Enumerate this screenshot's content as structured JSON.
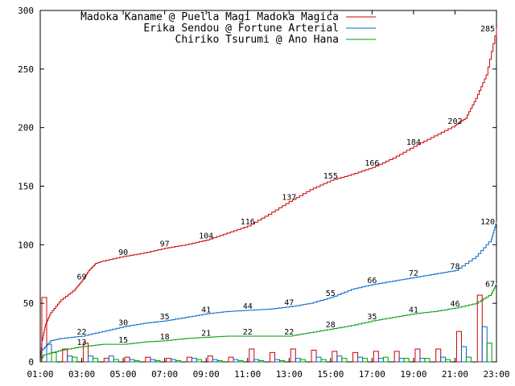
{
  "chart_data": {
    "type": "line",
    "ylim": [
      0,
      300
    ],
    "yticks": [
      "0",
      "50",
      "100",
      "150",
      "200",
      "250",
      "300"
    ],
    "xlim": [
      "01:00",
      "23:00"
    ],
    "xticks": [
      "01:00",
      "03:00",
      "05:00",
      "07:00",
      "09:00",
      "11:00",
      "13:00",
      "15:00",
      "17:00",
      "19:00",
      "21:00",
      "23:00"
    ],
    "legend_position": "top-right",
    "series": [
      {
        "name": "Madoka Kaname @ Puella Magi Madoka Magica",
        "color": "#cc0000",
        "points": [
          [
            "01:00",
            0
          ],
          [
            "01:05",
            18
          ],
          [
            "01:15",
            32
          ],
          [
            "01:30",
            42
          ],
          [
            "02:00",
            53
          ],
          [
            "02:40",
            62
          ],
          [
            "03:00",
            69
          ],
          [
            "03:20",
            78
          ],
          [
            "03:40",
            84
          ],
          [
            "04:00",
            86
          ],
          [
            "05:00",
            90
          ],
          [
            "06:00",
            93
          ],
          [
            "07:00",
            97
          ],
          [
            "08:00",
            100
          ],
          [
            "09:00",
            104
          ],
          [
            "10:00",
            110
          ],
          [
            "11:00",
            116
          ],
          [
            "12:00",
            126
          ],
          [
            "13:00",
            137
          ],
          [
            "14:00",
            147
          ],
          [
            "15:00",
            155
          ],
          [
            "16:00",
            160
          ],
          [
            "17:00",
            166
          ],
          [
            "18:00",
            174
          ],
          [
            "19:00",
            184
          ],
          [
            "20:00",
            193
          ],
          [
            "21:00",
            202
          ],
          [
            "21:30",
            208
          ],
          [
            "22:00",
            225
          ],
          [
            "22:30",
            245
          ],
          [
            "23:00",
            285
          ]
        ],
        "labels": [
          [
            "03:00",
            69,
            "69"
          ],
          [
            "05:00",
            90,
            "90"
          ],
          [
            "07:00",
            97,
            "97"
          ],
          [
            "09:00",
            104,
            "104"
          ],
          [
            "11:00",
            116,
            "116"
          ],
          [
            "13:00",
            137,
            "137"
          ],
          [
            "15:00",
            155,
            "155"
          ],
          [
            "17:00",
            166,
            "166"
          ],
          [
            "19:00",
            184,
            "184"
          ],
          [
            "21:00",
            202,
            "202"
          ],
          [
            "23:00",
            285,
            "285"
          ]
        ],
        "bars": [
          [
            "01:00",
            55
          ],
          [
            "02:00",
            11
          ],
          [
            "03:00",
            16
          ],
          [
            "04:00",
            3
          ],
          [
            "05:00",
            4
          ],
          [
            "06:00",
            4
          ],
          [
            "07:00",
            3
          ],
          [
            "08:00",
            4
          ],
          [
            "09:00",
            5
          ],
          [
            "10:00",
            4
          ],
          [
            "11:00",
            11
          ],
          [
            "12:00",
            8
          ],
          [
            "13:00",
            11
          ],
          [
            "14:00",
            10
          ],
          [
            "15:00",
            9
          ],
          [
            "16:00",
            8
          ],
          [
            "17:00",
            9
          ],
          [
            "18:00",
            9
          ],
          [
            "19:00",
            11
          ],
          [
            "20:00",
            11
          ],
          [
            "21:00",
            26
          ],
          [
            "22:00",
            57
          ]
        ]
      },
      {
        "name": "Erika Sendou @ Fortune Arterial",
        "color": "#0066cc",
        "points": [
          [
            "01:00",
            0
          ],
          [
            "01:05",
            10
          ],
          [
            "01:30",
            18
          ],
          [
            "02:00",
            20
          ],
          [
            "03:00",
            22
          ],
          [
            "04:00",
            26
          ],
          [
            "05:00",
            30
          ],
          [
            "06:00",
            33
          ],
          [
            "07:00",
            35
          ],
          [
            "08:00",
            38
          ],
          [
            "09:00",
            41
          ],
          [
            "10:00",
            43
          ],
          [
            "11:00",
            44
          ],
          [
            "12:00",
            45
          ],
          [
            "13:00",
            47
          ],
          [
            "14:00",
            50
          ],
          [
            "15:00",
            55
          ],
          [
            "16:00",
            62
          ],
          [
            "17:00",
            66
          ],
          [
            "18:00",
            69
          ],
          [
            "19:00",
            72
          ],
          [
            "20:00",
            75
          ],
          [
            "21:00",
            78
          ],
          [
            "22:00",
            90
          ],
          [
            "22:45",
            105
          ],
          [
            "23:00",
            120
          ]
        ],
        "labels": [
          [
            "03:00",
            22,
            "22"
          ],
          [
            "05:00",
            30,
            "30"
          ],
          [
            "07:00",
            35,
            "35"
          ],
          [
            "09:00",
            41,
            "41"
          ],
          [
            "11:00",
            44,
            "44"
          ],
          [
            "13:00",
            47,
            "47"
          ],
          [
            "15:00",
            55,
            "55"
          ],
          [
            "17:00",
            66,
            "66"
          ],
          [
            "19:00",
            72,
            "72"
          ],
          [
            "21:00",
            78,
            "78"
          ],
          [
            "23:00",
            120,
            "120"
          ]
        ],
        "bars": [
          [
            "01:00",
            15
          ],
          [
            "02:00",
            5
          ],
          [
            "03:00",
            5
          ],
          [
            "04:00",
            5
          ],
          [
            "05:00",
            2
          ],
          [
            "06:00",
            2
          ],
          [
            "07:00",
            2
          ],
          [
            "08:00",
            3
          ],
          [
            "09:00",
            2
          ],
          [
            "10:00",
            2
          ],
          [
            "11:00",
            2
          ],
          [
            "12:00",
            2
          ],
          [
            "13:00",
            3
          ],
          [
            "14:00",
            4
          ],
          [
            "15:00",
            5
          ],
          [
            "16:00",
            4
          ],
          [
            "17:00",
            3
          ],
          [
            "18:00",
            3
          ],
          [
            "19:00",
            3
          ],
          [
            "20:00",
            4
          ],
          [
            "21:00",
            13
          ],
          [
            "22:00",
            30
          ]
        ]
      },
      {
        "name": "Chiriko Tsurumi @ Ano Hana",
        "color": "#009900",
        "points": [
          [
            "01:00",
            0
          ],
          [
            "01:10",
            6
          ],
          [
            "02:00",
            10
          ],
          [
            "03:00",
            13
          ],
          [
            "04:00",
            15
          ],
          [
            "05:00",
            15
          ],
          [
            "06:00",
            17
          ],
          [
            "07:00",
            18
          ],
          [
            "08:00",
            20
          ],
          [
            "09:00",
            21
          ],
          [
            "10:00",
            22
          ],
          [
            "11:00",
            22
          ],
          [
            "12:00",
            22
          ],
          [
            "13:00",
            22
          ],
          [
            "14:00",
            25
          ],
          [
            "15:00",
            28
          ],
          [
            "16:00",
            31
          ],
          [
            "17:00",
            35
          ],
          [
            "18:00",
            38
          ],
          [
            "19:00",
            41
          ],
          [
            "20:00",
            43
          ],
          [
            "21:00",
            46
          ],
          [
            "22:00",
            50
          ],
          [
            "22:45",
            58
          ],
          [
            "23:00",
            67
          ]
        ],
        "labels": [
          [
            "03:00",
            13,
            "13"
          ],
          [
            "05:00",
            15,
            "15"
          ],
          [
            "07:00",
            18,
            "18"
          ],
          [
            "09:00",
            21,
            "21"
          ],
          [
            "11:00",
            22,
            "22"
          ],
          [
            "13:00",
            22,
            "22"
          ],
          [
            "15:00",
            28,
            "28"
          ],
          [
            "17:00",
            35,
            "35"
          ],
          [
            "19:00",
            41,
            "41"
          ],
          [
            "21:00",
            46,
            "46"
          ],
          [
            "23:00",
            67,
            "67"
          ]
        ],
        "bars": [
          [
            "01:00",
            8
          ],
          [
            "02:00",
            4
          ],
          [
            "03:00",
            3
          ],
          [
            "04:00",
            2
          ],
          [
            "05:00",
            1
          ],
          [
            "06:00",
            1
          ],
          [
            "07:00",
            1
          ],
          [
            "08:00",
            2
          ],
          [
            "09:00",
            1
          ],
          [
            "10:00",
            1
          ],
          [
            "11:00",
            1
          ],
          [
            "12:00",
            1
          ],
          [
            "13:00",
            2
          ],
          [
            "14:00",
            2
          ],
          [
            "15:00",
            3
          ],
          [
            "16:00",
            3
          ],
          [
            "17:00",
            4
          ],
          [
            "18:00",
            3
          ],
          [
            "19:00",
            3
          ],
          [
            "20:00",
            2
          ],
          [
            "21:00",
            4
          ],
          [
            "22:00",
            16
          ]
        ]
      }
    ]
  }
}
